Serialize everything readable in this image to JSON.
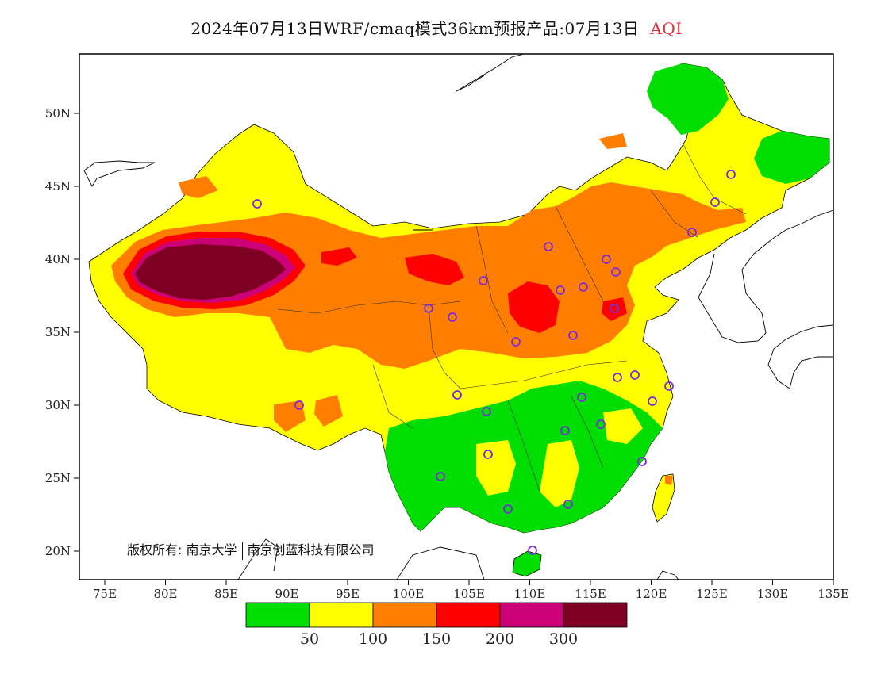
{
  "title": {
    "main": "2024年07月13日WRF/cmaq模式36km预报产品:07月13日",
    "variable": "AQI"
  },
  "axes": {
    "lon_labels": [
      "75E",
      "80E",
      "85E",
      "90E",
      "95E",
      "100E",
      "105E",
      "110E",
      "115E",
      "120E",
      "125E",
      "130E",
      "135E"
    ],
    "lat_labels": [
      "50N",
      "45N",
      "40N",
      "35N",
      "30N",
      "25N",
      "20N"
    ]
  },
  "colorbar": {
    "colors": [
      "#00dd00",
      "#ffff00",
      "#ff7e00",
      "#ff0000",
      "#cc0077",
      "#7e0023"
    ],
    "labels": [
      "50",
      "100",
      "150",
      "200",
      "300"
    ]
  },
  "copyright": {
    "owner_prefix": "版权所有:",
    "org1": "南京大学",
    "org2": "南京创蓝科技有限公司"
  },
  "map": {
    "background": "#ffffff",
    "marker_color": "#7a2be0",
    "land_outline_color": "#000000"
  }
}
